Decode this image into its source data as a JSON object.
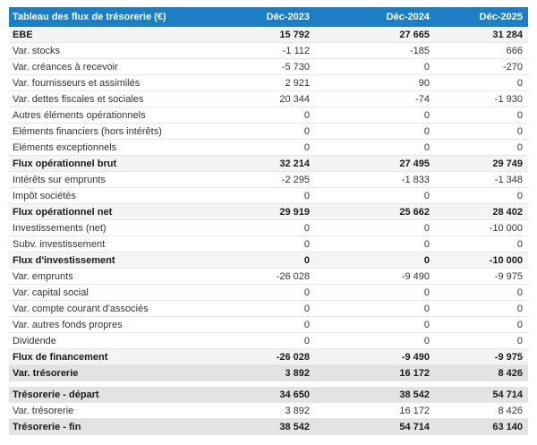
{
  "colors": {
    "header_bg": "#1c7fc3",
    "header_text": "#ffffff",
    "subtotal_bg": "#f4f4f4",
    "total_bg": "#e3e3e3"
  },
  "table": {
    "title": "Tableau des flux de trésorerie (€)",
    "columns": [
      "Déc-2023",
      "Déc-2024",
      "Déc-2025"
    ],
    "rows": [
      {
        "label": "EBE",
        "values": [
          "15 792",
          "27 665",
          "31 284"
        ],
        "style": "subtotal"
      },
      {
        "label": "Var. stocks",
        "values": [
          "-1 112",
          "-185",
          "666"
        ],
        "style": "normal"
      },
      {
        "label": "Var. créances à recevoir",
        "values": [
          "-5 730",
          "0",
          "-270"
        ],
        "style": "normal"
      },
      {
        "label": "Var. fournisseurs et assimilés",
        "values": [
          "2 921",
          "90",
          "0"
        ],
        "style": "normal"
      },
      {
        "label": "Var. dettes fiscales et sociales",
        "values": [
          "20 344",
          "-74",
          "-1 930"
        ],
        "style": "normal"
      },
      {
        "label": "Autres éléments opérationnels",
        "values": [
          "0",
          "0",
          "0"
        ],
        "style": "normal"
      },
      {
        "label": "Eléments financiers (hors intérêts)",
        "values": [
          "0",
          "0",
          "0"
        ],
        "style": "normal"
      },
      {
        "label": "Eléments exceptionnels",
        "values": [
          "0",
          "0",
          "0"
        ],
        "style": "normal"
      },
      {
        "label": "Flux opérationnel brut",
        "values": [
          "32 214",
          "27 495",
          "29 749"
        ],
        "style": "subtotal"
      },
      {
        "label": "Intérêts sur emprunts",
        "values": [
          "-2 295",
          "-1 833",
          "-1 348"
        ],
        "style": "normal"
      },
      {
        "label": "Impôt sociétés",
        "values": [
          "0",
          "0",
          "0"
        ],
        "style": "normal"
      },
      {
        "label": "Flux opérationnel net",
        "values": [
          "29 919",
          "25 662",
          "28 402"
        ],
        "style": "subtotal"
      },
      {
        "label": "Investissements (net)",
        "values": [
          "0",
          "0",
          "-10 000"
        ],
        "style": "normal"
      },
      {
        "label": "Subv. investissement",
        "values": [
          "0",
          "0",
          "0"
        ],
        "style": "normal"
      },
      {
        "label": "Flux d'investissement",
        "values": [
          "0",
          "0",
          "-10 000"
        ],
        "style": "subtotal"
      },
      {
        "label": "Var. emprunts",
        "values": [
          "-26 028",
          "-9 490",
          "-9 975"
        ],
        "style": "normal"
      },
      {
        "label": "Var. capital social",
        "values": [
          "0",
          "0",
          "0"
        ],
        "style": "normal"
      },
      {
        "label": "Var. compte courant d'associés",
        "values": [
          "0",
          "0",
          "0"
        ],
        "style": "normal"
      },
      {
        "label": "Var. autres fonds propres",
        "values": [
          "0",
          "0",
          "0"
        ],
        "style": "normal"
      },
      {
        "label": "Dividende",
        "values": [
          "0",
          "0",
          "0"
        ],
        "style": "normal"
      },
      {
        "label": "Flux de financement",
        "values": [
          "-26 028",
          "-9 490",
          "-9 975"
        ],
        "style": "subtotal"
      },
      {
        "label": "Var. trésorerie",
        "values": [
          "3 892",
          "16 172",
          "8 426"
        ],
        "style": "total"
      },
      {
        "label": "Trésorerie - départ",
        "values": [
          "34 650",
          "38 542",
          "54 714"
        ],
        "style": "total",
        "gap_before": true
      },
      {
        "label": "Var. trésorerie",
        "values": [
          "3 892",
          "16 172",
          "8 426"
        ],
        "style": "normal"
      },
      {
        "label": "Trésorerie - fin",
        "values": [
          "38 542",
          "54 714",
          "63 140"
        ],
        "style": "total"
      }
    ]
  }
}
